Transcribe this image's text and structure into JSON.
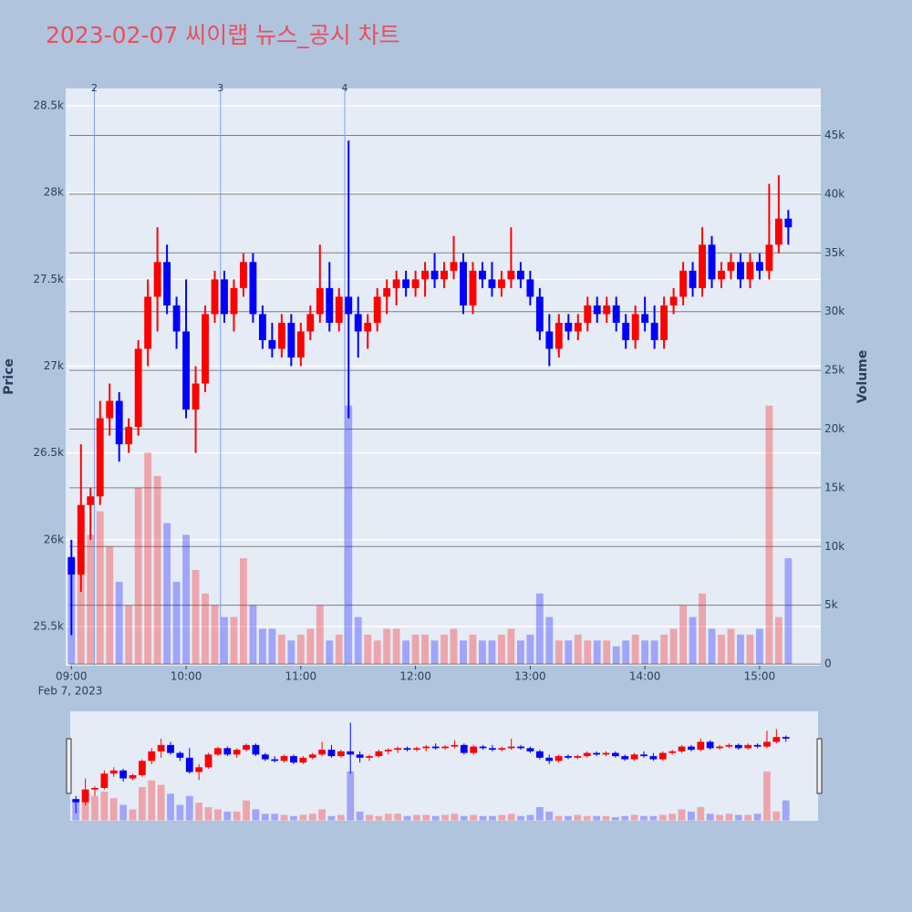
{
  "chart_data": {
    "type": "candlestick",
    "title": "2023-02-07 씨이랩 뉴스_공시 차트",
    "ylabel": "Price",
    "y2label": "Volume",
    "increasing_color": "#ff0000",
    "decreasing_color": "#0000ff",
    "x_date_label": "Feb 7, 2023",
    "x": [
      "2023-02-07 09:00",
      "2023-02-07 09:05",
      "2023-02-07 09:10",
      "2023-02-07 09:15",
      "2023-02-07 09:20",
      "2023-02-07 09:25",
      "2023-02-07 09:30",
      "2023-02-07 09:35",
      "2023-02-07 09:40",
      "2023-02-07 09:45",
      "2023-02-07 09:50",
      "2023-02-07 09:55",
      "2023-02-07 10:00",
      "2023-02-07 10:05",
      "2023-02-07 10:10",
      "2023-02-07 10:15",
      "2023-02-07 10:20",
      "2023-02-07 10:25",
      "2023-02-07 10:30",
      "2023-02-07 10:35",
      "2023-02-07 10:40",
      "2023-02-07 10:45",
      "2023-02-07 10:50",
      "2023-02-07 10:55",
      "2023-02-07 11:00",
      "2023-02-07 11:05",
      "2023-02-07 11:10",
      "2023-02-07 11:15",
      "2023-02-07 11:20",
      "2023-02-07 11:25",
      "2023-02-07 11:30",
      "2023-02-07 11:35",
      "2023-02-07 11:40",
      "2023-02-07 11:45",
      "2023-02-07 11:50",
      "2023-02-07 11:55",
      "2023-02-07 12:00",
      "2023-02-07 12:05",
      "2023-02-07 12:10",
      "2023-02-07 12:15",
      "2023-02-07 12:20",
      "2023-02-07 12:25",
      "2023-02-07 12:30",
      "2023-02-07 12:35",
      "2023-02-07 12:40",
      "2023-02-07 12:45",
      "2023-02-07 12:50",
      "2023-02-07 12:55",
      "2023-02-07 13:00",
      "2023-02-07 13:05",
      "2023-02-07 13:10",
      "2023-02-07 13:15",
      "2023-02-07 13:20",
      "2023-02-07 13:25",
      "2023-02-07 13:30",
      "2023-02-07 13:35",
      "2023-02-07 13:40",
      "2023-02-07 13:45",
      "2023-02-07 13:50",
      "2023-02-07 13:55",
      "2023-02-07 14:00",
      "2023-02-07 14:05",
      "2023-02-07 14:10",
      "2023-02-07 14:15",
      "2023-02-07 14:20",
      "2023-02-07 14:25",
      "2023-02-07 14:30",
      "2023-02-07 14:35",
      "2023-02-07 14:40",
      "2023-02-07 14:45",
      "2023-02-07 14:50",
      "2023-02-07 14:55",
      "2023-02-07 15:00",
      "2023-02-07 15:05",
      "2023-02-07 15:10",
      "2023-02-07 15:15"
    ],
    "open": [
      25900,
      25800,
      26200,
      26250,
      26700,
      26800,
      26550,
      26650,
      27100,
      27400,
      27600,
      27350,
      27200,
      26750,
      26900,
      27300,
      27500,
      27300,
      27450,
      27600,
      27300,
      27150,
      27100,
      27250,
      27050,
      27200,
      27300,
      27450,
      27250,
      27400,
      27300,
      27200,
      27250,
      27400,
      27450,
      27500,
      27450,
      27500,
      27550,
      27500,
      27550,
      27600,
      27350,
      27550,
      27500,
      27450,
      27500,
      27550,
      27500,
      27400,
      27200,
      27100,
      27250,
      27200,
      27250,
      27350,
      27300,
      27350,
      27250,
      27150,
      27300,
      27250,
      27150,
      27350,
      27400,
      27550,
      27450,
      27700,
      27500,
      27550,
      27600,
      27500,
      27600,
      27550,
      27700,
      27850
    ],
    "high": [
      26000,
      26550,
      26300,
      26800,
      26900,
      26850,
      26700,
      27150,
      27500,
      27800,
      27700,
      27400,
      27500,
      27000,
      27350,
      27550,
      27550,
      27500,
      27650,
      27650,
      27350,
      27250,
      27300,
      27300,
      27250,
      27350,
      27700,
      27600,
      27450,
      28300,
      27400,
      27300,
      27450,
      27500,
      27550,
      27550,
      27550,
      27600,
      27650,
      27600,
      27750,
      27650,
      27600,
      27600,
      27600,
      27550,
      27800,
      27600,
      27550,
      27450,
      27300,
      27300,
      27300,
      27300,
      27400,
      27400,
      27400,
      27400,
      27300,
      27350,
      27400,
      27350,
      27400,
      27450,
      27600,
      27600,
      27800,
      27750,
      27600,
      27650,
      27650,
      27650,
      27650,
      28050,
      28100,
      27900
    ],
    "low": [
      25450,
      25700,
      26000,
      26200,
      26600,
      26450,
      26500,
      26600,
      27000,
      27200,
      27300,
      27100,
      26700,
      26500,
      26850,
      27250,
      27250,
      27200,
      27400,
      27250,
      27100,
      27050,
      27050,
      27000,
      27000,
      27150,
      27250,
      27200,
      27200,
      26700,
      27050,
      27100,
      27200,
      27300,
      27350,
      27400,
      27400,
      27400,
      27450,
      27450,
      27500,
      27300,
      27300,
      27450,
      27400,
      27400,
      27450,
      27450,
      27350,
      27150,
      27000,
      27050,
      27150,
      27150,
      27200,
      27250,
      27250,
      27200,
      27100,
      27100,
      27200,
      27100,
      27100,
      27300,
      27350,
      27400,
      27400,
      27450,
      27450,
      27500,
      27450,
      27450,
      27500,
      27500,
      27650,
      27700
    ],
    "close": [
      25800,
      26200,
      26250,
      26700,
      26800,
      26550,
      26650,
      27100,
      27400,
      27600,
      27350,
      27200,
      26750,
      26900,
      27300,
      27500,
      27300,
      27450,
      27600,
      27300,
      27150,
      27100,
      27250,
      27050,
      27200,
      27300,
      27450,
      27250,
      27400,
      27300,
      27200,
      27250,
      27400,
      27450,
      27500,
      27450,
      27500,
      27550,
      27500,
      27550,
      27600,
      27350,
      27550,
      27500,
      27450,
      27500,
      27550,
      27500,
      27400,
      27200,
      27100,
      27250,
      27200,
      27250,
      27350,
      27300,
      27350,
      27250,
      27150,
      27300,
      27250,
      27150,
      27350,
      27400,
      27550,
      27450,
      27700,
      27500,
      27550,
      27600,
      27500,
      27600,
      27550,
      27700,
      27850,
      27800
    ],
    "volume": [
      9000,
      12000,
      11000,
      13000,
      10000,
      7000,
      5000,
      15000,
      18000,
      16000,
      12000,
      7000,
      11000,
      8000,
      6000,
      5000,
      4000,
      4000,
      9000,
      5000,
      3000,
      3000,
      2500,
      2000,
      2500,
      3000,
      5000,
      2000,
      2500,
      22000,
      4000,
      2500,
      2000,
      3000,
      3000,
      2000,
      2500,
      2500,
      2000,
      2500,
      3000,
      2000,
      2500,
      2000,
      2000,
      2500,
      3000,
      2000,
      2500,
      6000,
      4000,
      2000,
      2000,
      2500,
      2000,
      2000,
      2000,
      1500,
      2000,
      2500,
      2000,
      2000,
      2500,
      3000,
      5000,
      4000,
      6000,
      3000,
      2500,
      3000,
      2500,
      2500,
      3000,
      22000,
      4000,
      9000
    ],
    "xlim": [
      "2023-02-07 08:57",
      "2023-02-07 15:32"
    ],
    "xticks": [
      {
        "value": "2023-02-07 09:00",
        "label": "09:00"
      },
      {
        "value": "2023-02-07 10:00",
        "label": "10:00"
      },
      {
        "value": "2023-02-07 11:00",
        "label": "11:00"
      },
      {
        "value": "2023-02-07 12:00",
        "label": "12:00"
      },
      {
        "value": "2023-02-07 13:00",
        "label": "13:00"
      },
      {
        "value": "2023-02-07 14:00",
        "label": "14:00"
      },
      {
        "value": "2023-02-07 15:00",
        "label": "15:00"
      }
    ],
    "ylim": [
      25274,
      28600
    ],
    "yticks": [
      {
        "value": 25500,
        "label": "25.5k"
      },
      {
        "value": 26000,
        "label": "26k"
      },
      {
        "value": 26500,
        "label": "26.5k"
      },
      {
        "value": 27000,
        "label": "27k"
      },
      {
        "value": 27500,
        "label": "27.5k"
      },
      {
        "value": 28000,
        "label": "28k"
      },
      {
        "value": 28500,
        "label": "28.5k"
      }
    ],
    "y2lim": [
      -150,
      49000
    ],
    "y2ticks": [
      0,
      {
        "value": 5000,
        "label": "5k"
      },
      {
        "value": 10000,
        "label": "10k"
      },
      {
        "value": 15000,
        "label": "15k"
      },
      {
        "value": 20000,
        "label": "20k"
      },
      {
        "value": 25000,
        "label": "25k"
      },
      {
        "value": 30000,
        "label": "30k"
      },
      {
        "value": 35000,
        "label": "35k"
      },
      {
        "value": 40000,
        "label": "40k"
      },
      {
        "value": 45000,
        "label": "45k"
      }
    ],
    "annotations": [
      {
        "x": "2023-02-07 09:12",
        "label": "2"
      },
      {
        "x": "2023-02-07 10:18",
        "label": "3"
      },
      {
        "x": "2023-02-07 11:23",
        "label": "4"
      }
    ],
    "grid": true,
    "rangeslider": true
  }
}
